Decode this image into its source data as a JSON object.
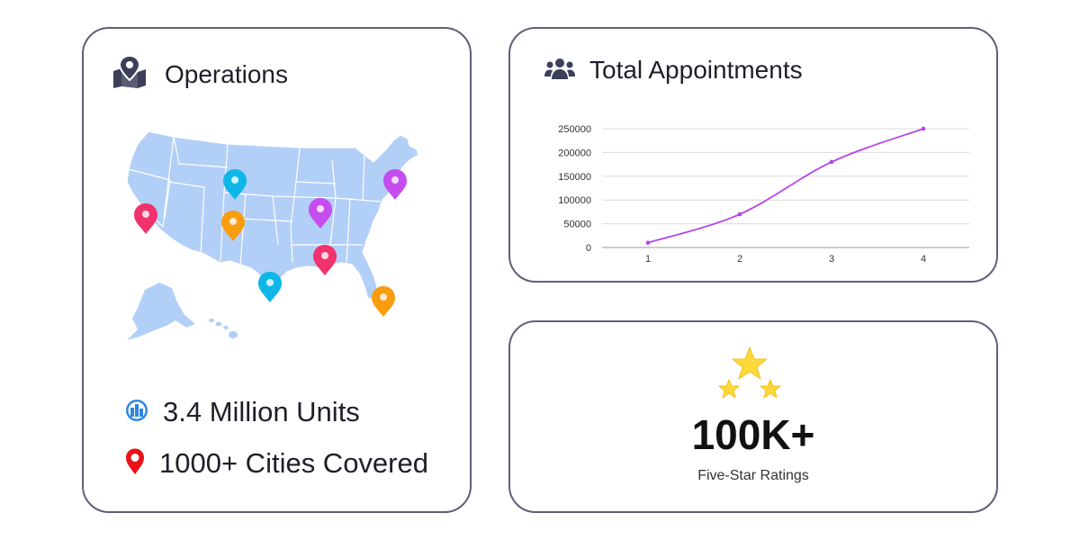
{
  "operations": {
    "title": "Operations",
    "icon": "map-pin-map-icon",
    "stats": [
      {
        "icon": "buildings-icon",
        "text": "3.4 Million Units"
      },
      {
        "icon": "location-pin-icon",
        "text": "1000+ Cities Covered"
      }
    ]
  },
  "appointments": {
    "title": "Total Appointments",
    "icon": "group-users-icon"
  },
  "rating": {
    "value": "100K+",
    "label": "Five-Star Ratings",
    "icon": "three-stars-icon"
  },
  "colors": {
    "card_border": "#5f5f78",
    "map_fill": "#b2cff7",
    "pin_pink": "#f0336e",
    "pin_cyan": "#0fb7e8",
    "pin_orange": "#f99d0f",
    "pin_purple": "#c54dee",
    "line": "#b545ec",
    "star": "#fcd83b"
  },
  "chart_data": {
    "type": "line",
    "x": [
      1,
      2,
      3,
      4
    ],
    "series": [
      {
        "values": [
          10000,
          70000,
          180000,
          250000
        ]
      }
    ],
    "xticks": [
      "1",
      "2",
      "3",
      "4"
    ],
    "yticks": [
      "0",
      "50000",
      "100000",
      "150000",
      "200000",
      "250000"
    ],
    "ylim": [
      0,
      250000
    ],
    "xlim": [
      0.5,
      4.5
    ],
    "grid": true,
    "legend": "none"
  }
}
